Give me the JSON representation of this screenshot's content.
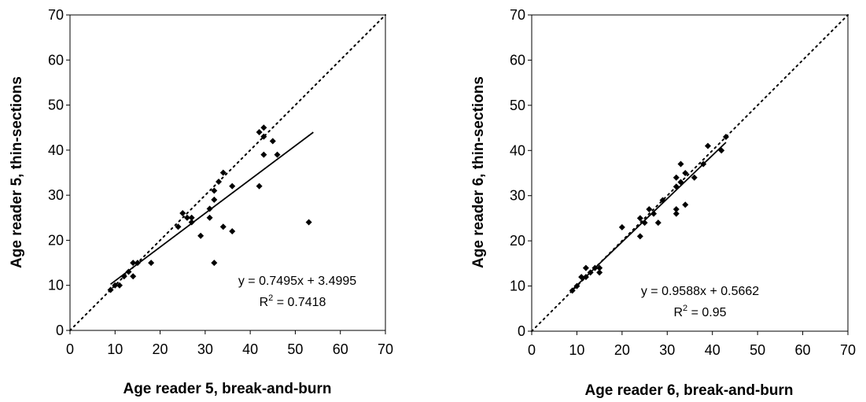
{
  "chart_data": [
    {
      "type": "scatter",
      "xlabel": "Age reader 5, break-and-burn",
      "ylabel": "Age reader 5, thin-sections",
      "xlim": [
        0,
        70
      ],
      "ylim": [
        0,
        70
      ],
      "ticks": [
        0,
        10,
        20,
        30,
        40,
        50,
        60,
        70
      ],
      "grid": false,
      "identity_line": true,
      "points": [
        [
          9,
          9
        ],
        [
          10,
          10
        ],
        [
          11,
          10
        ],
        [
          12,
          12
        ],
        [
          13,
          13
        ],
        [
          14,
          12
        ],
        [
          14,
          15
        ],
        [
          15,
          15
        ],
        [
          18,
          15
        ],
        [
          24,
          23
        ],
        [
          25,
          26
        ],
        [
          26,
          25
        ],
        [
          27,
          25
        ],
        [
          27,
          24
        ],
        [
          29,
          21
        ],
        [
          31,
          27
        ],
        [
          31,
          25
        ],
        [
          32,
          31
        ],
        [
          32,
          29
        ],
        [
          33,
          33
        ],
        [
          34,
          35
        ],
        [
          34,
          23
        ],
        [
          36,
          32
        ],
        [
          36,
          22
        ],
        [
          32,
          15
        ],
        [
          42,
          44
        ],
        [
          42,
          32
        ],
        [
          43,
          45
        ],
        [
          43,
          43
        ],
        [
          43,
          39
        ],
        [
          45,
          42
        ],
        [
          46,
          39
        ],
        [
          53,
          24
        ]
      ],
      "trendline": {
        "slope": 0.7495,
        "intercept": 3.4995,
        "x_range": [
          9,
          54
        ]
      },
      "annotation": {
        "equation": "y = 0.7495x + 3.4995",
        "r2_prefix": "R",
        "r2_sup": "2",
        "r2_value": " = 0.7418"
      }
    },
    {
      "type": "scatter",
      "xlabel": "Age reader 6, break-and-burn",
      "ylabel": "Age reader 6, thin-sections",
      "xlim": [
        0,
        70
      ],
      "ylim": [
        0,
        70
      ],
      "ticks": [
        0,
        10,
        20,
        30,
        40,
        50,
        60,
        70
      ],
      "grid": false,
      "identity_line": true,
      "points": [
        [
          9,
          9
        ],
        [
          10,
          10
        ],
        [
          11,
          12
        ],
        [
          12,
          12
        ],
        [
          12,
          14
        ],
        [
          13,
          13
        ],
        [
          14,
          14
        ],
        [
          15,
          14
        ],
        [
          15,
          13
        ],
        [
          20,
          23
        ],
        [
          24,
          21
        ],
        [
          24,
          25
        ],
        [
          25,
          24
        ],
        [
          26,
          27
        ],
        [
          27,
          26
        ],
        [
          28,
          24
        ],
        [
          29,
          29
        ],
        [
          32,
          27
        ],
        [
          32,
          26
        ],
        [
          32,
          34
        ],
        [
          32,
          32
        ],
        [
          33,
          33
        ],
        [
          33,
          37
        ],
        [
          34,
          35
        ],
        [
          34,
          28
        ],
        [
          36,
          34
        ],
        [
          38,
          37
        ],
        [
          39,
          41
        ],
        [
          42,
          40
        ],
        [
          43,
          43
        ]
      ],
      "trendline": {
        "slope": 0.9588,
        "intercept": 0.5662,
        "x_range": [
          9,
          43
        ]
      },
      "annotation": {
        "equation": "y = 0.9588x + 0.5662",
        "r2_prefix": "R",
        "r2_sup": "2",
        "r2_value": " = 0.95"
      }
    }
  ]
}
